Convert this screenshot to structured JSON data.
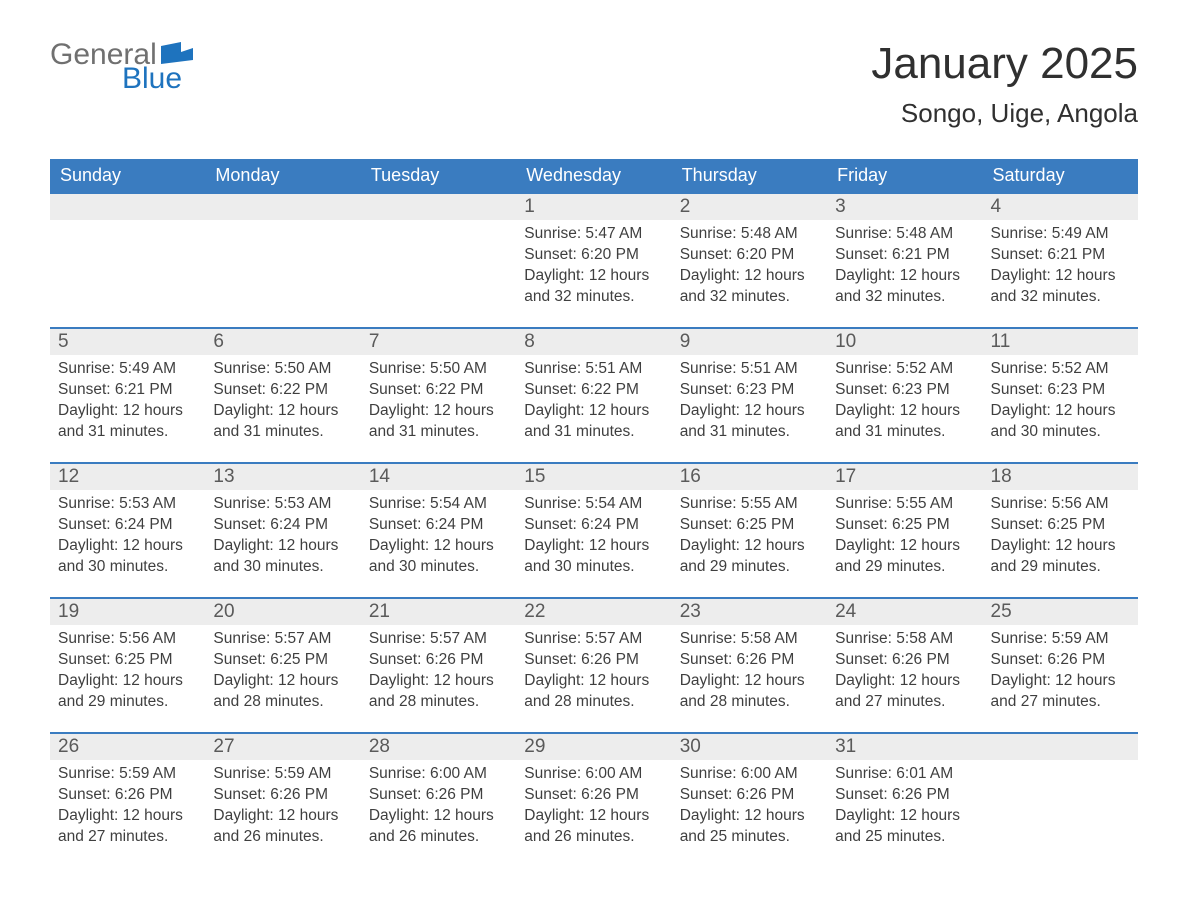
{
  "brand": {
    "word1": "General",
    "word2": "Blue",
    "word1_color": "#707070",
    "word2_color": "#1e73be",
    "flag_color": "#1e73be"
  },
  "title": "January 2025",
  "location": "Songo, Uige, Angola",
  "colors": {
    "header_bg": "#3a7cc0",
    "header_text": "#ffffff",
    "daynum_bg": "#ededed",
    "daynum_border": "#3a7cc0",
    "text": "#303030",
    "body_text": "#3f3f3f",
    "page_bg": "#ffffff"
  },
  "fonts": {
    "title_size_pt": 33,
    "location_size_pt": 20,
    "header_size_pt": 14,
    "daynum_size_pt": 14,
    "body_size_pt": 12
  },
  "weekdays": [
    "Sunday",
    "Monday",
    "Tuesday",
    "Wednesday",
    "Thursday",
    "Friday",
    "Saturday"
  ],
  "first_weekday_index": 3,
  "days": [
    {
      "n": 1,
      "sunrise": "5:47 AM",
      "sunset": "6:20 PM",
      "daylight": "12 hours and 32 minutes."
    },
    {
      "n": 2,
      "sunrise": "5:48 AM",
      "sunset": "6:20 PM",
      "daylight": "12 hours and 32 minutes."
    },
    {
      "n": 3,
      "sunrise": "5:48 AM",
      "sunset": "6:21 PM",
      "daylight": "12 hours and 32 minutes."
    },
    {
      "n": 4,
      "sunrise": "5:49 AM",
      "sunset": "6:21 PM",
      "daylight": "12 hours and 32 minutes."
    },
    {
      "n": 5,
      "sunrise": "5:49 AM",
      "sunset": "6:21 PM",
      "daylight": "12 hours and 31 minutes."
    },
    {
      "n": 6,
      "sunrise": "5:50 AM",
      "sunset": "6:22 PM",
      "daylight": "12 hours and 31 minutes."
    },
    {
      "n": 7,
      "sunrise": "5:50 AM",
      "sunset": "6:22 PM",
      "daylight": "12 hours and 31 minutes."
    },
    {
      "n": 8,
      "sunrise": "5:51 AM",
      "sunset": "6:22 PM",
      "daylight": "12 hours and 31 minutes."
    },
    {
      "n": 9,
      "sunrise": "5:51 AM",
      "sunset": "6:23 PM",
      "daylight": "12 hours and 31 minutes."
    },
    {
      "n": 10,
      "sunrise": "5:52 AM",
      "sunset": "6:23 PM",
      "daylight": "12 hours and 31 minutes."
    },
    {
      "n": 11,
      "sunrise": "5:52 AM",
      "sunset": "6:23 PM",
      "daylight": "12 hours and 30 minutes."
    },
    {
      "n": 12,
      "sunrise": "5:53 AM",
      "sunset": "6:24 PM",
      "daylight": "12 hours and 30 minutes."
    },
    {
      "n": 13,
      "sunrise": "5:53 AM",
      "sunset": "6:24 PM",
      "daylight": "12 hours and 30 minutes."
    },
    {
      "n": 14,
      "sunrise": "5:54 AM",
      "sunset": "6:24 PM",
      "daylight": "12 hours and 30 minutes."
    },
    {
      "n": 15,
      "sunrise": "5:54 AM",
      "sunset": "6:24 PM",
      "daylight": "12 hours and 30 minutes."
    },
    {
      "n": 16,
      "sunrise": "5:55 AM",
      "sunset": "6:25 PM",
      "daylight": "12 hours and 29 minutes."
    },
    {
      "n": 17,
      "sunrise": "5:55 AM",
      "sunset": "6:25 PM",
      "daylight": "12 hours and 29 minutes."
    },
    {
      "n": 18,
      "sunrise": "5:56 AM",
      "sunset": "6:25 PM",
      "daylight": "12 hours and 29 minutes."
    },
    {
      "n": 19,
      "sunrise": "5:56 AM",
      "sunset": "6:25 PM",
      "daylight": "12 hours and 29 minutes."
    },
    {
      "n": 20,
      "sunrise": "5:57 AM",
      "sunset": "6:25 PM",
      "daylight": "12 hours and 28 minutes."
    },
    {
      "n": 21,
      "sunrise": "5:57 AM",
      "sunset": "6:26 PM",
      "daylight": "12 hours and 28 minutes."
    },
    {
      "n": 22,
      "sunrise": "5:57 AM",
      "sunset": "6:26 PM",
      "daylight": "12 hours and 28 minutes."
    },
    {
      "n": 23,
      "sunrise": "5:58 AM",
      "sunset": "6:26 PM",
      "daylight": "12 hours and 28 minutes."
    },
    {
      "n": 24,
      "sunrise": "5:58 AM",
      "sunset": "6:26 PM",
      "daylight": "12 hours and 27 minutes."
    },
    {
      "n": 25,
      "sunrise": "5:59 AM",
      "sunset": "6:26 PM",
      "daylight": "12 hours and 27 minutes."
    },
    {
      "n": 26,
      "sunrise": "5:59 AM",
      "sunset": "6:26 PM",
      "daylight": "12 hours and 27 minutes."
    },
    {
      "n": 27,
      "sunrise": "5:59 AM",
      "sunset": "6:26 PM",
      "daylight": "12 hours and 26 minutes."
    },
    {
      "n": 28,
      "sunrise": "6:00 AM",
      "sunset": "6:26 PM",
      "daylight": "12 hours and 26 minutes."
    },
    {
      "n": 29,
      "sunrise": "6:00 AM",
      "sunset": "6:26 PM",
      "daylight": "12 hours and 26 minutes."
    },
    {
      "n": 30,
      "sunrise": "6:00 AM",
      "sunset": "6:26 PM",
      "daylight": "12 hours and 25 minutes."
    },
    {
      "n": 31,
      "sunrise": "6:01 AM",
      "sunset": "6:26 PM",
      "daylight": "12 hours and 25 minutes."
    }
  ],
  "labels": {
    "sunrise": "Sunrise:",
    "sunset": "Sunset:",
    "daylight": "Daylight:"
  }
}
